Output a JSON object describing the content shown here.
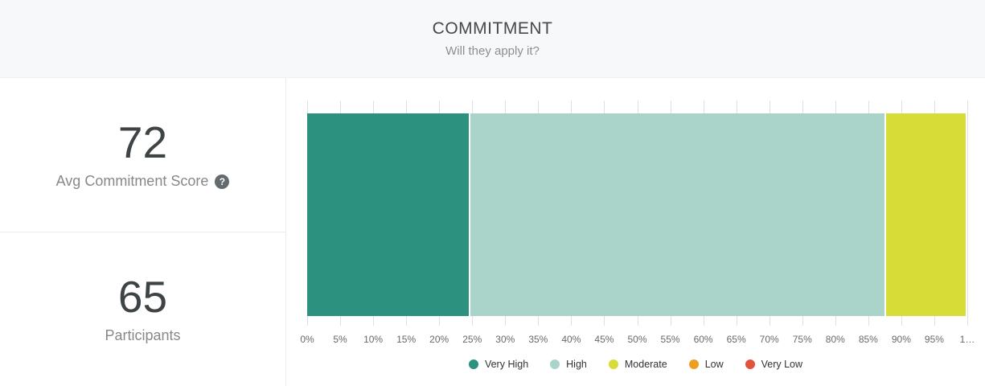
{
  "header": {
    "title": "COMMITMENT",
    "subtitle": "Will they apply it?"
  },
  "stats": {
    "score": {
      "value": "72",
      "label": "Avg Commitment Score",
      "help_icon": "?"
    },
    "participants": {
      "value": "65",
      "label": "Participants"
    }
  },
  "chart_data": {
    "type": "bar",
    "orientation": "horizontal",
    "stacking": "percent",
    "series": [
      {
        "name": "Very High",
        "percent": 24.6,
        "color": "#2d9180"
      },
      {
        "name": "High",
        "percent": 63.1,
        "color": "#aad3c9"
      },
      {
        "name": "Moderate",
        "percent": 12.3,
        "color": "#d8dc37"
      },
      {
        "name": "Low",
        "percent": 0,
        "color": "#ee9e20"
      },
      {
        "name": "Very Low",
        "percent": 0,
        "color": "#e2523f"
      }
    ],
    "xlim": [
      0,
      100
    ],
    "tick_step": 5,
    "tick_labels": [
      "0%",
      "5%",
      "10%",
      "15%",
      "20%",
      "25%",
      "30%",
      "35%",
      "40%",
      "45%",
      "50%",
      "55%",
      "60%",
      "65%",
      "70%",
      "75%",
      "80%",
      "85%",
      "90%",
      "95%",
      "1…"
    ],
    "grid": "vertical",
    "legend_position": "bottom",
    "colors": {
      "gridline": "#dce1e5",
      "tick_label": "#66696c",
      "legend_label": "#333333"
    }
  }
}
